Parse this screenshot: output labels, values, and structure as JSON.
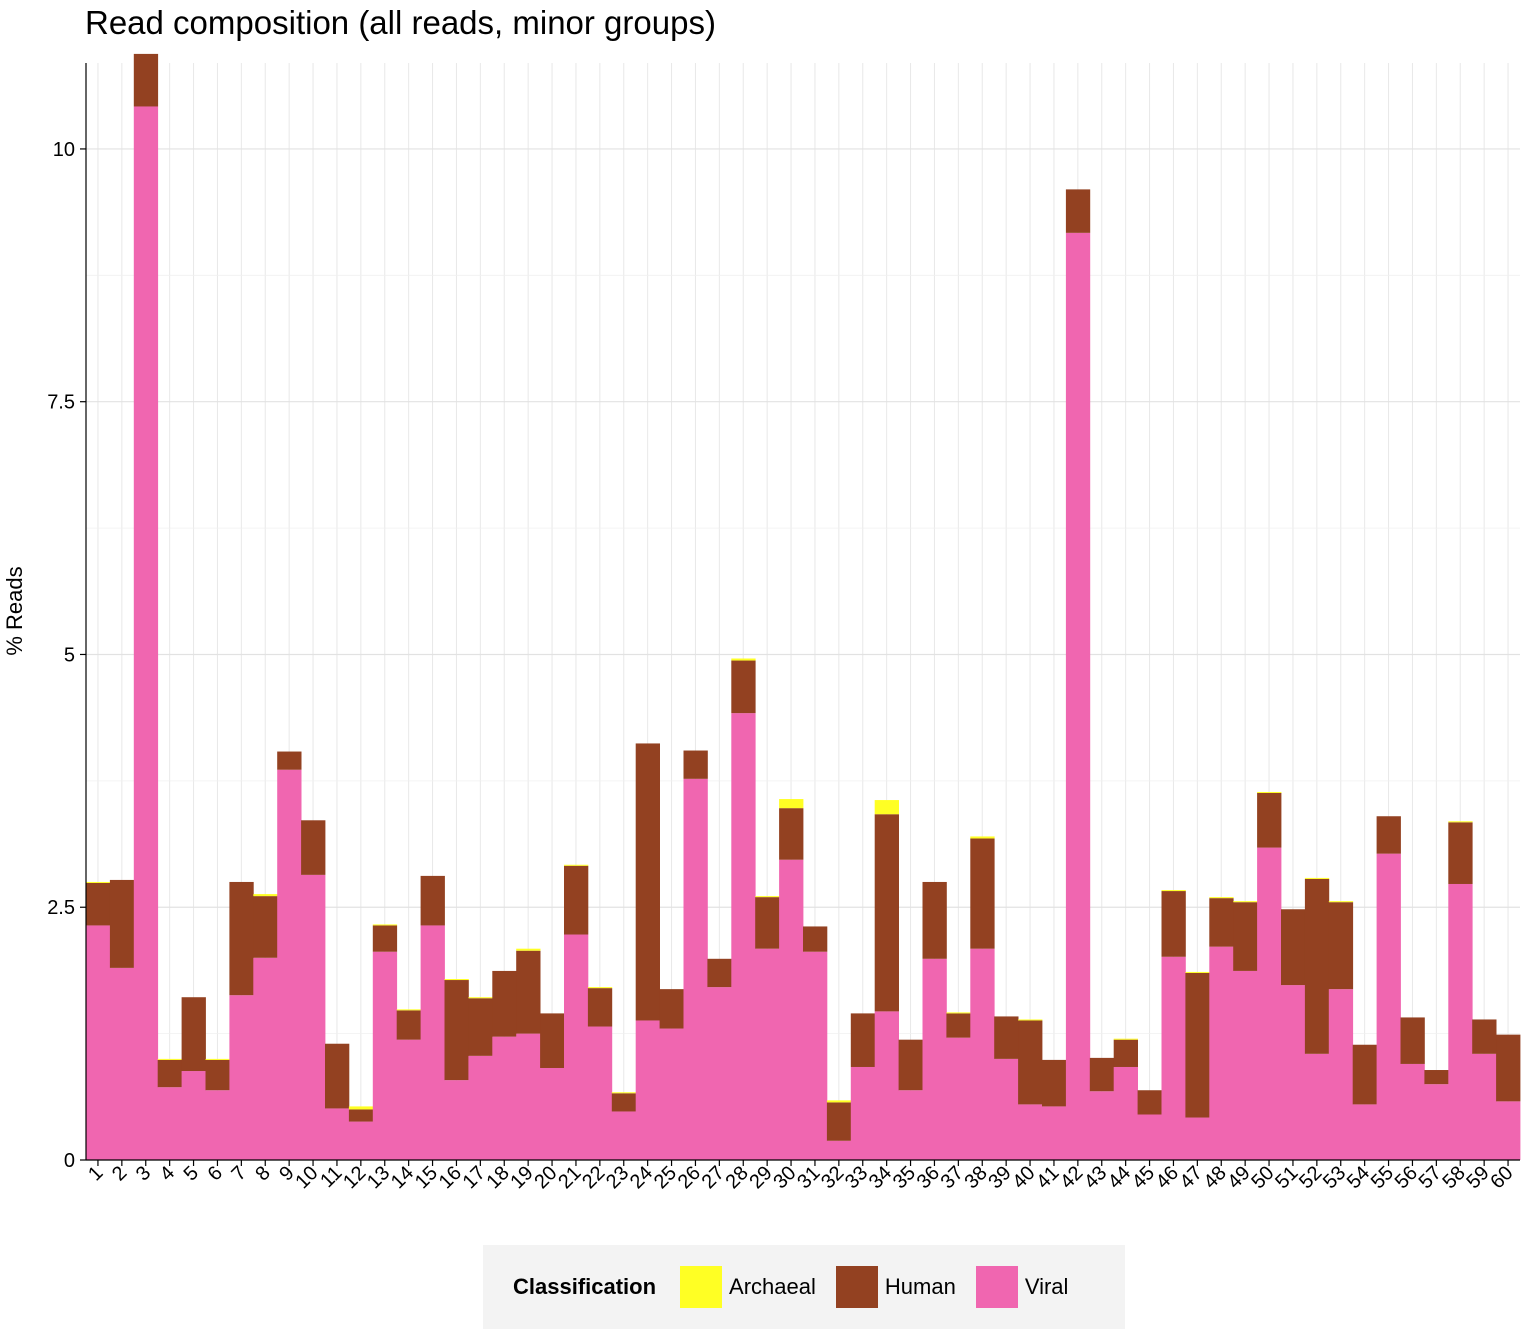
{
  "chart_data": {
    "type": "bar",
    "stacked": true,
    "title": "Read composition (all reads, minor groups)",
    "xlabel": "",
    "ylabel": "% Reads",
    "ylim": [
      0,
      10.85
    ],
    "yticks": [
      0,
      2.5,
      5,
      7.5,
      10
    ],
    "ytick_labels": [
      "0",
      "2.5",
      "5",
      "7.5",
      "10"
    ],
    "grid": true,
    "legend_position": "bottom",
    "legend_title": "Classification",
    "categories": [
      "1",
      "2",
      "3",
      "4",
      "5",
      "6",
      "7",
      "8",
      "9",
      "10",
      "11",
      "12",
      "13",
      "14",
      "15",
      "16",
      "17",
      "18",
      "19",
      "20",
      "21",
      "22",
      "23",
      "24",
      "25",
      "26",
      "27",
      "28",
      "29",
      "30",
      "31",
      "32",
      "33",
      "34",
      "35",
      "36",
      "37",
      "38",
      "39",
      "40",
      "41",
      "42",
      "43",
      "44",
      "45",
      "46",
      "47",
      "48",
      "49",
      "50",
      "51",
      "52",
      "53",
      "54",
      "55",
      "56",
      "57",
      "58",
      "59",
      "60"
    ],
    "series": [
      {
        "name": "Viral",
        "color": "#f066b0",
        "values": [
          2.32,
          1.9,
          10.42,
          0.72,
          0.88,
          0.69,
          1.63,
          2.0,
          3.86,
          2.82,
          0.51,
          0.38,
          2.06,
          1.19,
          2.32,
          0.79,
          1.03,
          1.22,
          1.25,
          0.91,
          2.23,
          1.32,
          0.48,
          1.38,
          1.3,
          3.77,
          1.71,
          4.42,
          2.09,
          2.97,
          2.06,
          0.19,
          0.92,
          1.47,
          0.69,
          1.99,
          1.21,
          2.09,
          1.0,
          0.55,
          0.53,
          9.17,
          0.68,
          0.92,
          0.45,
          2.01,
          0.42,
          2.11,
          1.87,
          3.09,
          1.73,
          1.05,
          1.69,
          0.55,
          3.03,
          0.95,
          0.75,
          2.73,
          1.05,
          0.58
        ]
      },
      {
        "name": "Human",
        "color": "#934121",
        "values": [
          0.42,
          0.87,
          0.52,
          0.27,
          0.73,
          0.3,
          1.12,
          0.61,
          0.18,
          0.54,
          0.64,
          0.12,
          0.26,
          0.29,
          0.49,
          0.99,
          0.57,
          0.65,
          0.82,
          0.54,
          0.68,
          0.38,
          0.18,
          2.74,
          0.39,
          0.28,
          0.28,
          0.52,
          0.51,
          0.51,
          0.25,
          0.38,
          0.53,
          1.95,
          0.5,
          0.76,
          0.24,
          1.09,
          0.42,
          0.83,
          0.46,
          0.43,
          0.33,
          0.27,
          0.24,
          0.65,
          1.43,
          0.48,
          0.68,
          0.54,
          0.75,
          1.73,
          0.86,
          0.59,
          0.37,
          0.46,
          0.14,
          0.61,
          0.34,
          0.66
        ]
      },
      {
        "name": "Archaeal",
        "color": "#ffff24",
        "values": [
          0.01,
          0.0,
          0.0,
          0.01,
          0.0,
          0.01,
          0.0,
          0.02,
          0.0,
          0.0,
          0.0,
          0.03,
          0.01,
          0.01,
          0.0,
          0.01,
          0.01,
          0.0,
          0.02,
          0.0,
          0.01,
          0.01,
          0.01,
          0.0,
          0.0,
          0.0,
          0.0,
          0.02,
          0.01,
          0.09,
          0.0,
          0.02,
          0.0,
          0.14,
          0.0,
          0.0,
          0.01,
          0.02,
          0.0,
          0.01,
          0.0,
          0.0,
          0.0,
          0.01,
          0.0,
          0.01,
          0.01,
          0.01,
          0.01,
          0.01,
          0.0,
          0.01,
          0.01,
          0.0,
          0.0,
          0.0,
          0.0,
          0.01,
          0.0,
          0.0
        ]
      }
    ]
  },
  "legend": {
    "title": "Classification",
    "items": [
      {
        "label": "Archaeal",
        "color": "#ffff24"
      },
      {
        "label": "Human",
        "color": "#934121"
      },
      {
        "label": "Viral",
        "color": "#f066b0"
      }
    ]
  }
}
